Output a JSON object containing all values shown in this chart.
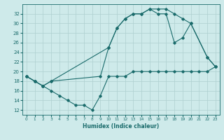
{
  "l1x": [
    0,
    1,
    2,
    3,
    9,
    10,
    11,
    12,
    13,
    14,
    15,
    16,
    17,
    18,
    19,
    20,
    22,
    23
  ],
  "l1y": [
    19,
    18,
    17,
    18,
    19,
    25,
    29,
    31,
    32,
    32,
    33,
    33,
    33,
    32,
    31,
    30,
    23,
    21
  ],
  "l2x": [
    0,
    1,
    2,
    3,
    10,
    11,
    12,
    13,
    14,
    15,
    16,
    17,
    18,
    19,
    20,
    22,
    23
  ],
  "l2y": [
    19,
    18,
    17,
    18,
    25,
    29,
    31,
    32,
    32,
    33,
    32,
    32,
    26,
    27,
    30,
    23,
    21
  ],
  "l3x": [
    0,
    1,
    2,
    3,
    4,
    5,
    6,
    7,
    8,
    9,
    10,
    11,
    12,
    13,
    14,
    15,
    16,
    17,
    18,
    19,
    20,
    21,
    22,
    23
  ],
  "l3y": [
    19,
    18,
    17,
    16,
    15,
    14,
    13,
    13,
    12,
    15,
    19,
    19,
    19,
    20,
    20,
    20,
    20,
    20,
    20,
    20,
    20,
    20,
    20,
    21
  ],
  "color": "#1a6b6b",
  "bg_color": "#ceeaea",
  "grid_color": "#aed0d0",
  "xlabel": "Humidex (Indice chaleur)",
  "yticks": [
    12,
    14,
    16,
    18,
    20,
    22,
    24,
    26,
    28,
    30,
    32
  ],
  "xticks": [
    0,
    1,
    2,
    3,
    4,
    5,
    6,
    7,
    8,
    9,
    10,
    11,
    12,
    13,
    14,
    15,
    16,
    17,
    18,
    19,
    20,
    21,
    22,
    23
  ],
  "xlim": [
    -0.5,
    23.5
  ],
  "ylim": [
    11.0,
    34.0
  ]
}
